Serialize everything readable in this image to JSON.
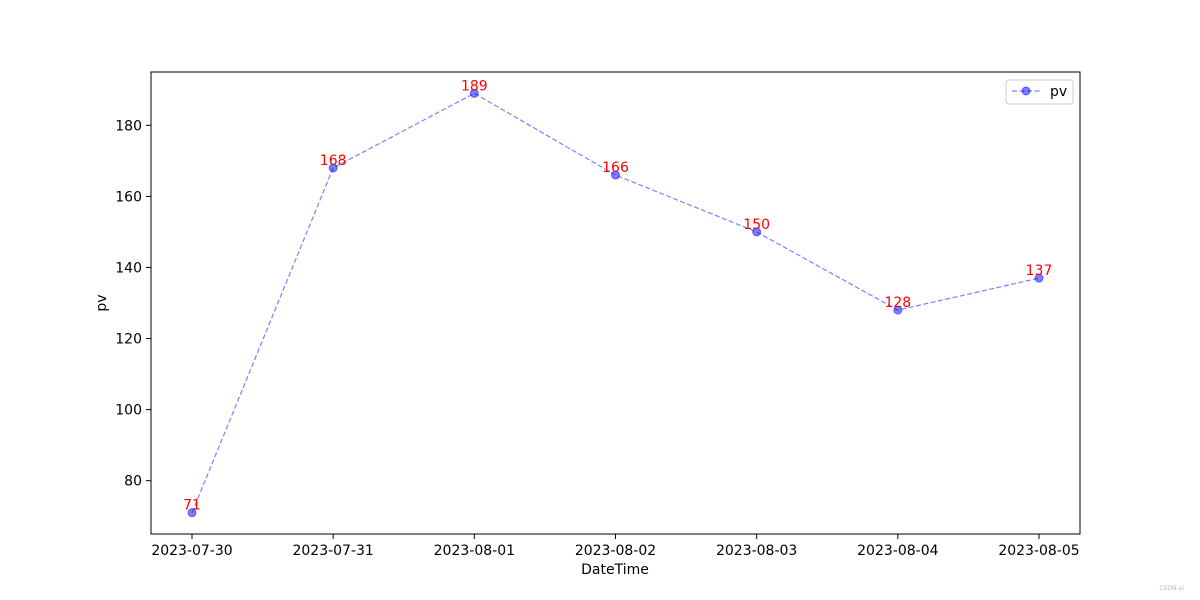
{
  "chart_data": {
    "type": "line",
    "title": "",
    "xlabel": "DateTime",
    "ylabel": "pv",
    "categories": [
      "2023-07-30",
      "2023-07-31",
      "2023-08-01",
      "2023-08-02",
      "2023-08-03",
      "2023-08-04",
      "2023-08-05"
    ],
    "series": [
      {
        "name": "pv",
        "values": [
          71,
          168,
          189,
          166,
          150,
          128,
          137
        ],
        "color": "#0000ff",
        "label_color": "#ff0000",
        "line_style": "dashed",
        "marker": "circle"
      }
    ],
    "ylim": [
      65,
      195
    ],
    "yticks": [
      80,
      100,
      120,
      140,
      160,
      180
    ],
    "grid": false,
    "legend_position": "top-right"
  },
  "watermark": "CSDN-ai"
}
